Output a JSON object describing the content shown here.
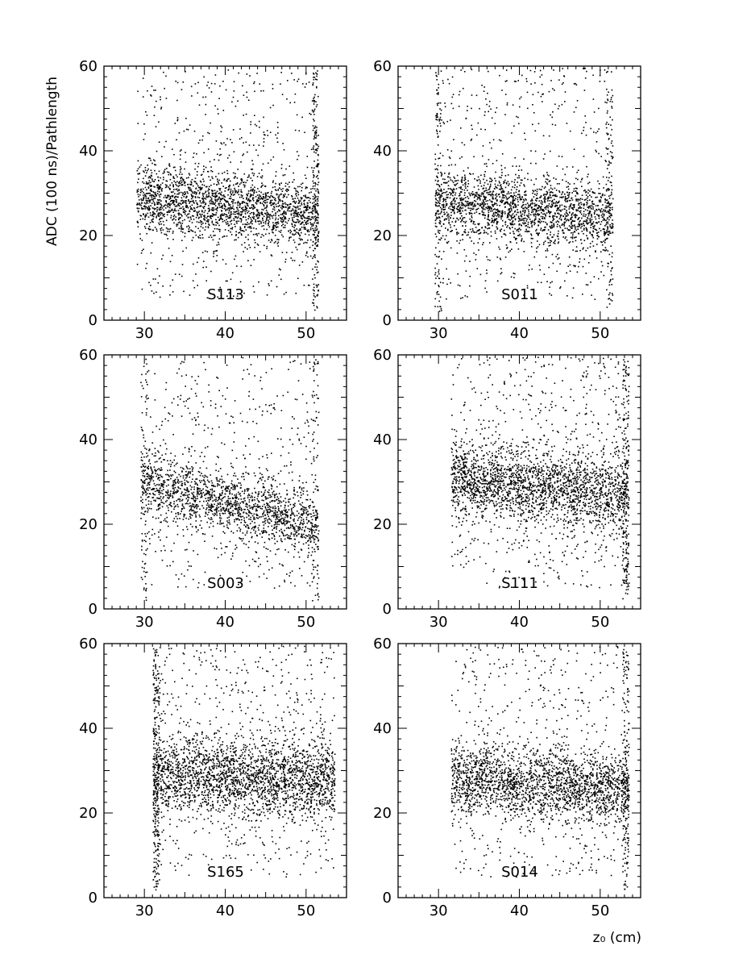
{
  "figure": {
    "ylabel": "ADC (100 ns)/Pathlength",
    "xlabel": "z₀ (cm)"
  },
  "chart_data": [
    {
      "type": "scatter",
      "label": "S113",
      "xlim": [
        25,
        55
      ],
      "ylim": [
        0,
        60
      ],
      "xticks": [
        30,
        40,
        50
      ],
      "yticks": [
        0,
        20,
        40,
        60
      ],
      "x_range": [
        29,
        51.5
      ],
      "band_start": 29.5,
      "band_end": 51,
      "band_left": 29,
      "band_right": 25,
      "band_spread": 4,
      "spike_edge": "right",
      "npoints": 2600
    },
    {
      "type": "scatter",
      "label": "S011",
      "xlim": [
        25,
        55
      ],
      "ylim": [
        0,
        60
      ],
      "xticks": [
        30,
        40,
        50
      ],
      "yticks": [
        0,
        20,
        40,
        60
      ],
      "x_range": [
        29.5,
        51.5
      ],
      "band_start": 30,
      "band_end": 51,
      "band_left": 28,
      "band_right": 24.5,
      "band_spread": 4,
      "spike_edge": "both",
      "npoints": 2500
    },
    {
      "type": "scatter",
      "label": "S003",
      "xlim": [
        25,
        55
      ],
      "ylim": [
        0,
        60
      ],
      "xticks": [
        30,
        40,
        50
      ],
      "yticks": [
        0,
        20,
        40,
        60
      ],
      "x_range": [
        29.5,
        51.5
      ],
      "band_start": 30,
      "band_end": 51,
      "band_left": 30,
      "band_right": 20,
      "band_spread": 4,
      "spike_edge": "both",
      "npoints": 2200
    },
    {
      "type": "scatter",
      "label": "S111",
      "xlim": [
        25,
        55
      ],
      "ylim": [
        0,
        60
      ],
      "xticks": [
        30,
        40,
        50
      ],
      "yticks": [
        0,
        20,
        40,
        60
      ],
      "x_range": [
        31.5,
        53.5
      ],
      "band_start": 32,
      "band_end": 53,
      "band_left": 31,
      "band_right": 27,
      "band_spread": 4.5,
      "spike_edge": "right",
      "npoints": 2900
    },
    {
      "type": "scatter",
      "label": "S165",
      "xlim": [
        25,
        55
      ],
      "ylim": [
        0,
        60
      ],
      "xticks": [
        30,
        40,
        50
      ],
      "yticks": [
        0,
        20,
        40,
        60
      ],
      "x_range": [
        31,
        53.5
      ],
      "band_start": 32,
      "band_end": 53,
      "band_left": 29,
      "band_right": 28,
      "band_spread": 4.5,
      "spike_edge": "left",
      "npoints": 3100
    },
    {
      "type": "scatter",
      "label": "S014",
      "xlim": [
        25,
        55
      ],
      "ylim": [
        0,
        60
      ],
      "xticks": [
        30,
        40,
        50
      ],
      "yticks": [
        0,
        20,
        40,
        60
      ],
      "x_range": [
        31.5,
        53.5
      ],
      "band_start": 32,
      "band_end": 53,
      "band_left": 28.5,
      "band_right": 25.5,
      "band_spread": 4,
      "spike_edge": "right",
      "npoints": 2700
    }
  ]
}
